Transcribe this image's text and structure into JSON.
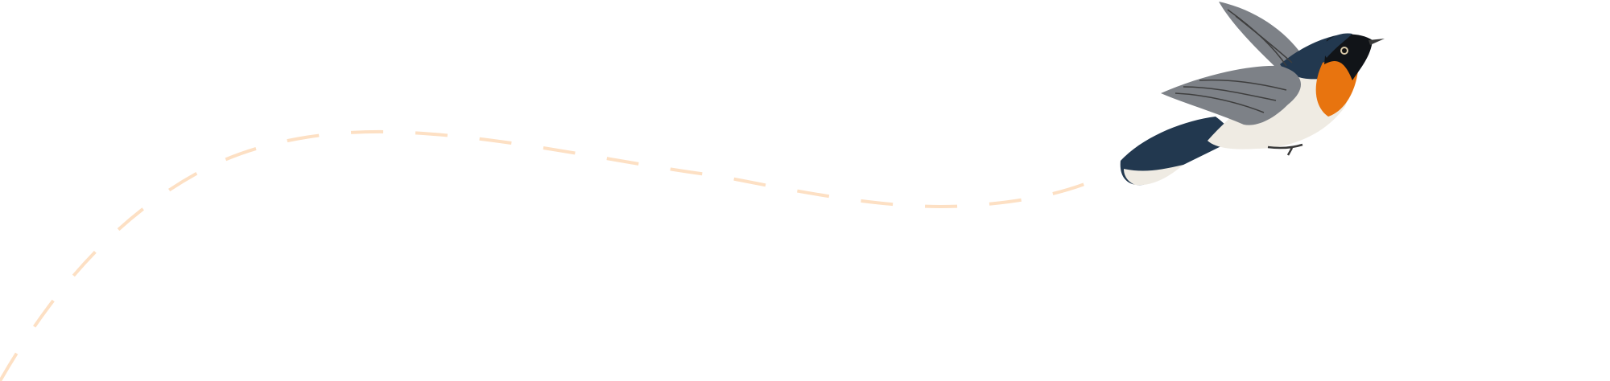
{
  "illustration": {
    "subject": "bird-in-flight",
    "path_style": "dashed",
    "colors": {
      "path": "#fde0c4",
      "bird_back": "#22384f",
      "bird_breast": "#e8740f",
      "bird_belly": "#efebe3",
      "bird_wing": "#7d8187",
      "bird_head": "#111418"
    }
  }
}
